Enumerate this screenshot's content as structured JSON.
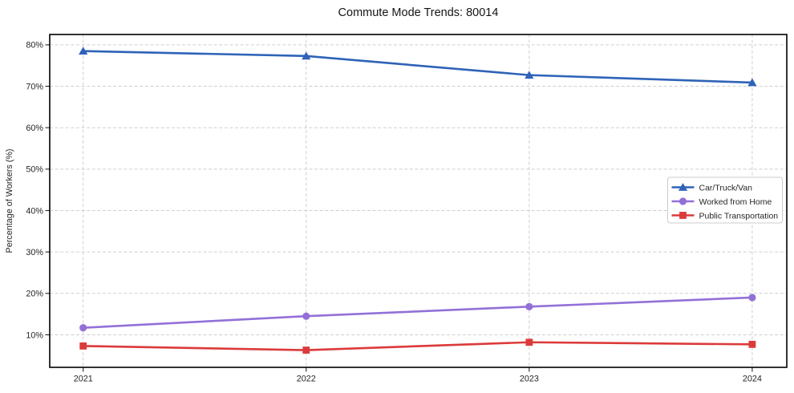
{
  "chart_data": {
    "type": "line",
    "title": "Commute Mode Trends: 80014",
    "xlabel": "",
    "ylabel": "Percentage of Workers (%)",
    "x": [
      2021,
      2022,
      2023,
      2024
    ],
    "x_tick_labels": [
      "2021",
      "2022",
      "2023",
      "2024"
    ],
    "y_ticks": [
      10,
      20,
      30,
      40,
      50,
      60,
      70,
      80
    ],
    "y_tick_suffix": "%",
    "series": [
      {
        "name": "Car/Truck/Van",
        "values": [
          78.5,
          77.3,
          72.7,
          70.9
        ],
        "color": "#2e63b8",
        "marker": "triangle"
      },
      {
        "name": "Worked from Home",
        "values": [
          11.7,
          14.5,
          16.8,
          19.0
        ],
        "color": "#9370d8",
        "marker": "circle"
      },
      {
        "name": "Public Transportation",
        "values": [
          7.3,
          6.3,
          8.2,
          7.7
        ],
        "color": "#dc3a3a",
        "marker": "square"
      }
    ],
    "xlim": [
      2020.85,
      2024.155
    ],
    "ylim": [
      2.15,
      82.5
    ],
    "grid": true,
    "grid_style": "dashed",
    "legend_position": "center-right",
    "text_color": "#262626",
    "grid_color": "#cfcfcf",
    "spine_color": "#000000"
  }
}
